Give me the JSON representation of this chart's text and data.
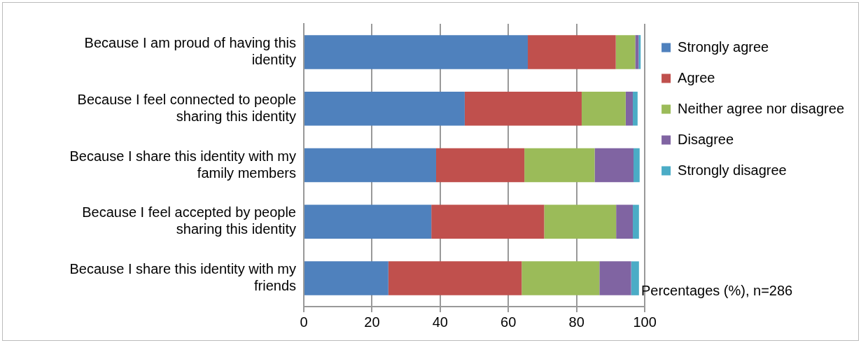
{
  "chart_data": {
    "type": "bar",
    "orientation": "horizontal",
    "stacked": true,
    "categories": [
      "Because I am proud of having this identity",
      "Because I feel connected to people sharing this identity",
      "Because I share this identity with my family members",
      "Because I feel accepted by people sharing this identity",
      "Because I share this identity with my friends"
    ],
    "series": [
      {
        "name": "Strongly agree",
        "color": "#4f81bd",
        "values": [
          65.7,
          47.2,
          38.8,
          37.4,
          24.8
        ]
      },
      {
        "name": "Agree",
        "color": "#c0504d",
        "values": [
          25.8,
          34.3,
          25.9,
          33.1,
          39.1
        ]
      },
      {
        "name": "Neither agree nor disagree",
        "color": "#9bbb59",
        "values": [
          5.7,
          12.9,
          20.6,
          21.1,
          22.8
        ]
      },
      {
        "name": "Disagree",
        "color": "#8064a2",
        "values": [
          1.0,
          2.1,
          11.4,
          4.9,
          9.3
        ]
      },
      {
        "name": "Strongly disagree",
        "color": "#4bacc6",
        "values": [
          0.6,
          1.4,
          1.8,
          1.8,
          2.3
        ]
      }
    ],
    "xlim": [
      0,
      100
    ],
    "xticks": [
      0,
      20,
      40,
      60,
      80,
      100
    ],
    "grid": "x",
    "legend": "right",
    "annotations": [
      "Percentages (%), n=286"
    ]
  }
}
